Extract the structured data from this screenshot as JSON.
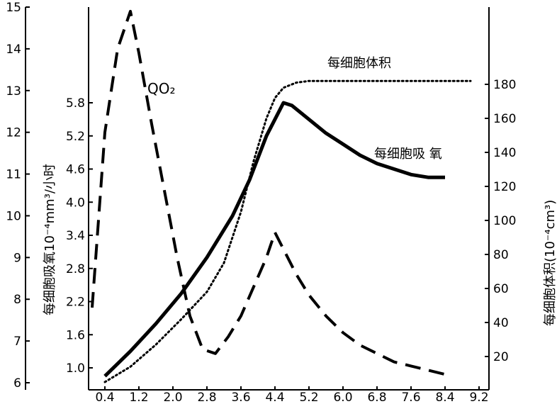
{
  "chart_data": {
    "type": "line",
    "xlabel": "",
    "x_ticks": [
      "0.4",
      "1.2",
      "2.0",
      "2.8",
      "3.6",
      "4.4",
      "5.2",
      "6.0",
      "6.8",
      "7.6",
      "8.4",
      "9.2"
    ],
    "y_left_outer_ticks": [
      "6",
      "7",
      "8",
      "9",
      "10",
      "11",
      "12",
      "13",
      "14",
      "15"
    ],
    "y_left_inner_ticks": [
      "1.0",
      "1.6",
      "2.2",
      "2.8",
      "3.4",
      "4.0",
      "4.6",
      "5.2",
      "5.8"
    ],
    "y_right_ticks": [
      "20",
      "40",
      "60",
      "80",
      "100",
      "120",
      "140",
      "160",
      "180"
    ],
    "ylabel_left": "每细胞吸氧10⁻⁴mm³/小时",
    "ylabel_right": "每细胞体积(10⁻⁴cm³)",
    "xlim": [
      0,
      9.6
    ],
    "y_outer_lim": [
      6,
      15
    ],
    "y_inner_lim": [
      0.4,
      6.4
    ],
    "y_right_lim": [
      0,
      200
    ],
    "series": [
      {
        "name": "QO₂",
        "axis": "outer",
        "style": "dashed",
        "x": [
          0.1,
          0.4,
          0.7,
          1.0,
          1.2,
          1.5,
          1.8,
          2.1,
          2.4,
          2.7,
          3.0,
          3.3,
          3.6,
          3.9,
          4.2,
          4.4,
          4.6,
          4.9,
          5.2,
          5.6,
          6.0,
          6.4,
          6.8,
          7.2,
          7.6,
          8.0,
          8.4
        ],
        "values": [
          7.8,
          12.0,
          14.0,
          14.9,
          13.9,
          12.2,
          10.6,
          9.0,
          7.6,
          6.8,
          6.7,
          7.1,
          7.6,
          8.3,
          9.0,
          9.6,
          9.2,
          8.6,
          8.1,
          7.6,
          7.2,
          6.9,
          6.7,
          6.5,
          6.4,
          6.3,
          6.2
        ]
      },
      {
        "name": "每细胞吸氧",
        "axis": "inner",
        "style": "solid",
        "x": [
          0.4,
          1.0,
          1.6,
          2.2,
          2.8,
          3.4,
          3.8,
          4.2,
          4.6,
          4.8,
          5.2,
          5.6,
          6.0,
          6.4,
          6.8,
          7.2,
          7.6,
          8.0,
          8.4
        ],
        "values": [
          0.85,
          1.3,
          1.8,
          2.35,
          3.0,
          3.75,
          4.4,
          5.2,
          5.8,
          5.75,
          5.5,
          5.25,
          5.05,
          4.85,
          4.7,
          4.6,
          4.5,
          4.45,
          4.45
        ]
      },
      {
        "name": "每细胞体积",
        "axis": "right",
        "style": "dotted",
        "x": [
          0.4,
          1.0,
          1.6,
          2.2,
          2.8,
          3.2,
          3.6,
          3.9,
          4.2,
          4.4,
          4.6,
          4.9,
          5.2,
          5.6,
          6.0,
          6.8,
          7.6,
          8.4,
          9.0
        ],
        "values": [
          5,
          14,
          27,
          42,
          58,
          75,
          105,
          135,
          160,
          172,
          178,
          181,
          182,
          182,
          182,
          182,
          182,
          182,
          182
        ]
      }
    ],
    "annotations": {
      "qo2": "QO₂",
      "volume": "每细胞体积",
      "oxygen": "每细胞吸 氧"
    },
    "legend": "none",
    "grid": false
  }
}
